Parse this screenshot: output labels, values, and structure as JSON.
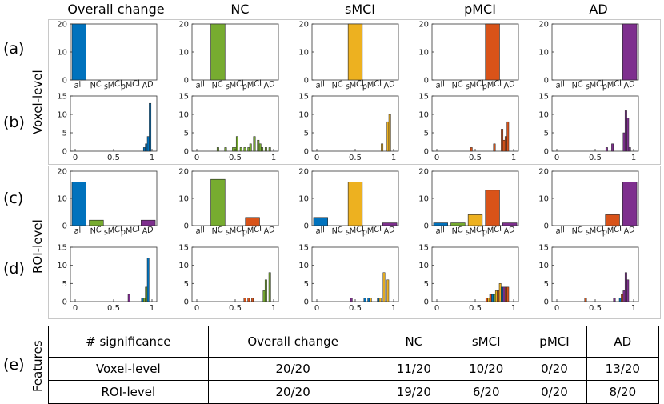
{
  "columns": [
    "Overall change",
    "NC",
    "sMCI",
    "pMCI",
    "AD"
  ],
  "row_labels": [
    "(a)",
    "(b)",
    "(c)",
    "(d)",
    "(e)"
  ],
  "side_labels": {
    "voxel": "Voxel-level",
    "roi": "ROI-level",
    "features": "Features"
  },
  "colors": {
    "all": "#0072BD",
    "NC": "#77AC30",
    "sMCI": "#EDB120",
    "pMCI": "#D95319",
    "AD": "#7E2F8E"
  },
  "chart_data": {
    "type": "bar",
    "panels": [
      {
        "row": "a",
        "col": 0,
        "kind": "category",
        "ylim": [
          0,
          20
        ],
        "yticks": [
          0,
          10,
          20
        ],
        "categories": [
          "all",
          "NC",
          "sMCI",
          "pMCI",
          "AD"
        ],
        "values": [
          20,
          0,
          0,
          0,
          0
        ]
      },
      {
        "row": "a",
        "col": 1,
        "kind": "category",
        "ylim": [
          0,
          20
        ],
        "yticks": [
          0,
          10,
          20
        ],
        "categories": [
          "all",
          "NC",
          "sMCI",
          "pMCI",
          "AD"
        ],
        "values": [
          0,
          20,
          0,
          0,
          0
        ]
      },
      {
        "row": "a",
        "col": 2,
        "kind": "category",
        "ylim": [
          0,
          20
        ],
        "yticks": [
          0,
          10,
          20
        ],
        "categories": [
          "all",
          "NC",
          "sMCI",
          "pMCI",
          "AD"
        ],
        "values": [
          0,
          0,
          20,
          0,
          0
        ]
      },
      {
        "row": "a",
        "col": 3,
        "kind": "category",
        "ylim": [
          0,
          20
        ],
        "yticks": [
          0,
          10,
          20
        ],
        "categories": [
          "all",
          "NC",
          "sMCI",
          "pMCI",
          "AD"
        ],
        "values": [
          0,
          0,
          0,
          20,
          0
        ]
      },
      {
        "row": "a",
        "col": 4,
        "kind": "category",
        "ylim": [
          0,
          20
        ],
        "yticks": [
          0,
          10,
          20
        ],
        "categories": [
          "all",
          "NC",
          "sMCI",
          "pMCI",
          "AD"
        ],
        "values": [
          0,
          0,
          0,
          0,
          20
        ]
      },
      {
        "row": "b",
        "col": 0,
        "kind": "hist",
        "ylim": [
          0,
          15
        ],
        "yticks": [
          0,
          5,
          10,
          15
        ],
        "xlim": [
          0,
          1
        ],
        "xticks": [
          "0",
          "0.5",
          "1"
        ],
        "binwidth": 0.025,
        "bars": [
          {
            "x": 0.9,
            "y": 1,
            "s": "all"
          },
          {
            "x": 0.925,
            "y": 2,
            "s": "all"
          },
          {
            "x": 0.95,
            "y": 4,
            "s": "all"
          },
          {
            "x": 0.975,
            "y": 13,
            "s": "all"
          }
        ]
      },
      {
        "row": "b",
        "col": 1,
        "kind": "hist",
        "ylim": [
          0,
          15
        ],
        "yticks": [
          0,
          5,
          10,
          15
        ],
        "xlim": [
          0,
          1
        ],
        "xticks": [
          "0",
          "0.5",
          "1"
        ],
        "binwidth": 0.025,
        "bars": [
          {
            "x": 0.275,
            "y": 1,
            "s": "NC"
          },
          {
            "x": 0.375,
            "y": 1,
            "s": "NC"
          },
          {
            "x": 0.475,
            "y": 1,
            "s": "NC"
          },
          {
            "x": 0.5,
            "y": 1,
            "s": "NC"
          },
          {
            "x": 0.525,
            "y": 4,
            "s": "NC"
          },
          {
            "x": 0.575,
            "y": 1,
            "s": "NC"
          },
          {
            "x": 0.625,
            "y": 1,
            "s": "NC"
          },
          {
            "x": 0.675,
            "y": 1,
            "s": "NC"
          },
          {
            "x": 0.7,
            "y": 2,
            "s": "NC"
          },
          {
            "x": 0.75,
            "y": 4,
            "s": "NC"
          },
          {
            "x": 0.8,
            "y": 3,
            "s": "NC"
          },
          {
            "x": 0.825,
            "y": 2,
            "s": "NC"
          },
          {
            "x": 0.85,
            "y": 1,
            "s": "NC"
          },
          {
            "x": 0.9,
            "y": 1,
            "s": "NC"
          },
          {
            "x": 0.95,
            "y": 1,
            "s": "NC"
          }
        ]
      },
      {
        "row": "b",
        "col": 2,
        "kind": "hist",
        "ylim": [
          0,
          15
        ],
        "yticks": [
          0,
          5,
          10,
          15
        ],
        "xlim": [
          0,
          1
        ],
        "xticks": [
          "0",
          "0.5",
          "1"
        ],
        "binwidth": 0.025,
        "bars": [
          {
            "x": 0.85,
            "y": 2,
            "s": "sMCI"
          },
          {
            "x": 0.925,
            "y": 8,
            "s": "sMCI"
          },
          {
            "x": 0.95,
            "y": 10,
            "s": "sMCI"
          }
        ]
      },
      {
        "row": "b",
        "col": 3,
        "kind": "hist",
        "ylim": [
          0,
          15
        ],
        "yticks": [
          0,
          5,
          10,
          15
        ],
        "xlim": [
          0,
          1
        ],
        "xticks": [
          "0",
          "0.5",
          "1"
        ],
        "binwidth": 0.025,
        "bars": [
          {
            "x": 0.45,
            "y": 1,
            "s": "pMCI"
          },
          {
            "x": 0.75,
            "y": 2,
            "s": "pMCI"
          },
          {
            "x": 0.85,
            "y": 6,
            "s": "pMCI"
          },
          {
            "x": 0.875,
            "y": 3,
            "s": "pMCI"
          },
          {
            "x": 0.9,
            "y": 4,
            "s": "pMCI"
          },
          {
            "x": 0.925,
            "y": 8,
            "s": "pMCI"
          }
        ]
      },
      {
        "row": "b",
        "col": 4,
        "kind": "hist",
        "ylim": [
          0,
          15
        ],
        "yticks": [
          0,
          5,
          10,
          15
        ],
        "xlim": [
          0,
          1
        ],
        "xticks": [
          "0",
          "0.5",
          "1"
        ],
        "binwidth": 0.025,
        "bars": [
          {
            "x": 0.65,
            "y": 1,
            "s": "AD"
          },
          {
            "x": 0.725,
            "y": 2,
            "s": "AD"
          },
          {
            "x": 0.875,
            "y": 5,
            "s": "AD"
          },
          {
            "x": 0.9,
            "y": 11,
            "s": "AD"
          },
          {
            "x": 0.925,
            "y": 9,
            "s": "AD"
          },
          {
            "x": 0.95,
            "y": 1,
            "s": "AD"
          }
        ]
      },
      {
        "row": "c",
        "col": 0,
        "kind": "category",
        "ylim": [
          0,
          20
        ],
        "yticks": [
          0,
          10,
          20
        ],
        "categories": [
          "all",
          "NC",
          "sMCI",
          "pMCI",
          "AD"
        ],
        "values": [
          16,
          2,
          0,
          0,
          2
        ]
      },
      {
        "row": "c",
        "col": 1,
        "kind": "category",
        "ylim": [
          0,
          20
        ],
        "yticks": [
          0,
          10,
          20
        ],
        "categories": [
          "all",
          "NC",
          "sMCI",
          "pMCI",
          "AD"
        ],
        "values": [
          0,
          17,
          0,
          3,
          0
        ]
      },
      {
        "row": "c",
        "col": 2,
        "kind": "category",
        "ylim": [
          0,
          20
        ],
        "yticks": [
          0,
          10,
          20
        ],
        "categories": [
          "all",
          "NC",
          "sMCI",
          "pMCI",
          "AD"
        ],
        "values": [
          3,
          0,
          16,
          0,
          1
        ]
      },
      {
        "row": "c",
        "col": 3,
        "kind": "category",
        "ylim": [
          0,
          20
        ],
        "yticks": [
          0,
          10,
          20
        ],
        "categories": [
          "all",
          "NC",
          "sMCI",
          "pMCI",
          "AD"
        ],
        "values": [
          1,
          1,
          4,
          13,
          1
        ]
      },
      {
        "row": "c",
        "col": 4,
        "kind": "category",
        "ylim": [
          0,
          20
        ],
        "yticks": [
          0,
          10,
          20
        ],
        "categories": [
          "all",
          "NC",
          "sMCI",
          "pMCI",
          "AD"
        ],
        "values": [
          0,
          0,
          0,
          4,
          16
        ]
      },
      {
        "row": "d",
        "col": 0,
        "kind": "hist",
        "ylim": [
          0,
          15
        ],
        "yticks": [
          0,
          5,
          10,
          15
        ],
        "xlim": [
          0,
          1
        ],
        "xticks": [
          "0",
          "0.5",
          "1"
        ],
        "binwidth": 0.025,
        "bars": [
          {
            "x": 0.7,
            "y": 2,
            "s": "AD"
          },
          {
            "x": 0.875,
            "y": 1,
            "s": "all"
          },
          {
            "x": 0.9,
            "y": 1,
            "s": "NC"
          },
          {
            "x": 0.925,
            "y": 4,
            "s": "NC"
          },
          {
            "x": 0.95,
            "y": 12,
            "s": "all"
          }
        ]
      },
      {
        "row": "d",
        "col": 1,
        "kind": "hist",
        "ylim": [
          0,
          15
        ],
        "yticks": [
          0,
          5,
          10,
          15
        ],
        "xlim": [
          0,
          1
        ],
        "xticks": [
          "0",
          "0.5",
          "1"
        ],
        "binwidth": 0.025,
        "bars": [
          {
            "x": 0.625,
            "y": 1,
            "s": "pMCI"
          },
          {
            "x": 0.675,
            "y": 1,
            "s": "pMCI"
          },
          {
            "x": 0.725,
            "y": 1,
            "s": "pMCI"
          },
          {
            "x": 0.875,
            "y": 3,
            "s": "NC"
          },
          {
            "x": 0.9,
            "y": 6,
            "s": "NC"
          },
          {
            "x": 0.95,
            "y": 8,
            "s": "NC"
          }
        ]
      },
      {
        "row": "d",
        "col": 2,
        "kind": "hist",
        "ylim": [
          0,
          15
        ],
        "yticks": [
          0,
          5,
          10,
          15
        ],
        "xlim": [
          0,
          1
        ],
        "xticks": [
          "0",
          "0.5",
          "1"
        ],
        "binwidth": 0.025,
        "bars": [
          {
            "x": 0.45,
            "y": 1,
            "s": "AD"
          },
          {
            "x": 0.625,
            "y": 1,
            "s": "all"
          },
          {
            "x": 0.675,
            "y": 1,
            "s": "all"
          },
          {
            "x": 0.7,
            "y": 1,
            "s": "sMCI"
          },
          {
            "x": 0.8,
            "y": 1,
            "s": "all"
          },
          {
            "x": 0.825,
            "y": 1,
            "s": "sMCI"
          },
          {
            "x": 0.875,
            "y": 8,
            "s": "sMCI"
          },
          {
            "x": 0.925,
            "y": 6,
            "s": "sMCI"
          }
        ]
      },
      {
        "row": "d",
        "col": 3,
        "kind": "hist",
        "ylim": [
          0,
          15
        ],
        "yticks": [
          0,
          5,
          10,
          15
        ],
        "xlim": [
          0,
          1
        ],
        "xticks": [
          "0",
          "0.5",
          "1"
        ],
        "binwidth": 0.025,
        "bars": [
          {
            "x": 0.65,
            "y": 1,
            "s": "pMCI"
          },
          {
            "x": 0.675,
            "y": 1,
            "s": "sMCI"
          },
          {
            "x": 0.7,
            "y": 2,
            "s": "pMCI"
          },
          {
            "x": 0.725,
            "y": 2,
            "s": "all"
          },
          {
            "x": 0.75,
            "y": 2,
            "s": "NC"
          },
          {
            "x": 0.775,
            "y": 3,
            "s": "sMCI"
          },
          {
            "x": 0.8,
            "y": 3,
            "s": "pMCI"
          },
          {
            "x": 0.825,
            "y": 5,
            "s": "sMCI"
          },
          {
            "x": 0.85,
            "y": 4,
            "s": "all"
          },
          {
            "x": 0.875,
            "y": 4,
            "s": "AD"
          },
          {
            "x": 0.9,
            "y": 4,
            "s": "pMCI"
          },
          {
            "x": 0.925,
            "y": 4,
            "s": "pMCI"
          }
        ]
      },
      {
        "row": "d",
        "col": 4,
        "kind": "hist",
        "ylim": [
          0,
          15
        ],
        "yticks": [
          0,
          5,
          10,
          15
        ],
        "xlim": [
          0,
          1
        ],
        "xticks": [
          "0",
          "0.5",
          "1"
        ],
        "binwidth": 0.025,
        "bars": [
          {
            "x": 0.375,
            "y": 1,
            "s": "pMCI"
          },
          {
            "x": 0.75,
            "y": 1,
            "s": "AD"
          },
          {
            "x": 0.825,
            "y": 1,
            "s": "all"
          },
          {
            "x": 0.85,
            "y": 2,
            "s": "pMCI"
          },
          {
            "x": 0.875,
            "y": 3,
            "s": "AD"
          },
          {
            "x": 0.9,
            "y": 8,
            "s": "AD"
          },
          {
            "x": 0.925,
            "y": 6,
            "s": "AD"
          }
        ]
      }
    ]
  },
  "table": {
    "header": [
      "# significance",
      "Overall change",
      "NC",
      "sMCI",
      "pMCI",
      "AD"
    ],
    "rows": [
      [
        "Voxel-level",
        "20/20",
        "11/20",
        "10/20",
        "0/20",
        "13/20"
      ],
      [
        "ROI-level",
        "20/20",
        "19/20",
        "6/20",
        "0/20",
        "8/20"
      ]
    ]
  }
}
